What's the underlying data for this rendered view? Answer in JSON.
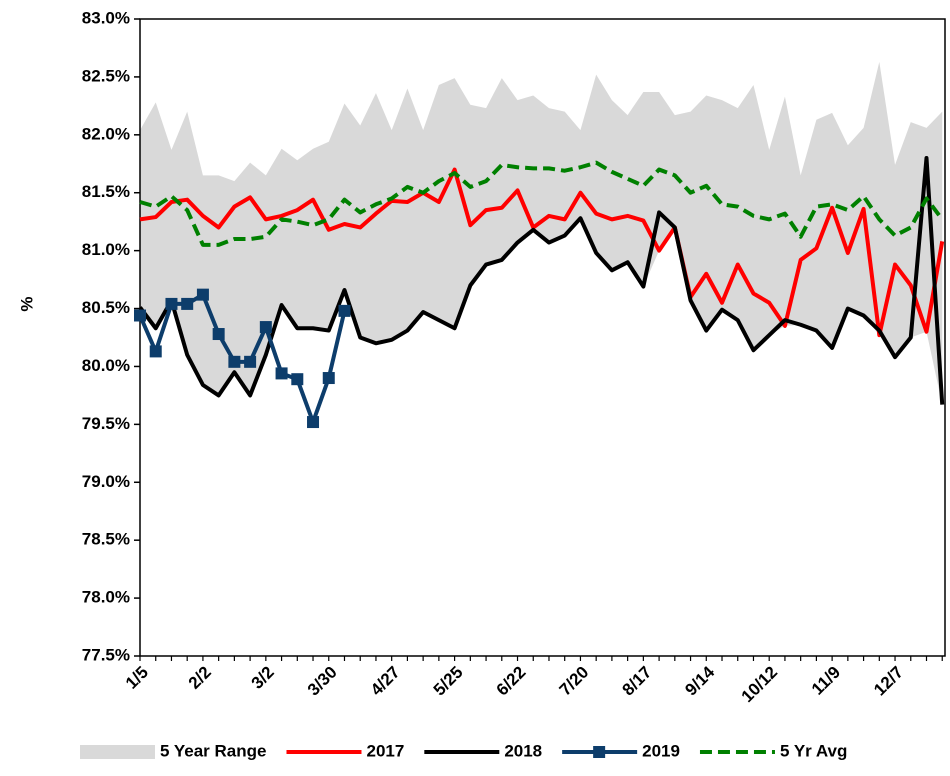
{
  "chart_data": {
    "type": "line",
    "ylabel": "%",
    "categories": [
      "1/5",
      null,
      null,
      null,
      "2/2",
      null,
      null,
      null,
      "3/2",
      null,
      null,
      null,
      "3/30",
      null,
      null,
      null,
      "4/27",
      null,
      null,
      null,
      "5/25",
      null,
      null,
      null,
      "6/22",
      null,
      null,
      null,
      "7/20",
      null,
      null,
      null,
      "8/17",
      null,
      null,
      null,
      "9/14",
      null,
      null,
      null,
      "10/12",
      null,
      null,
      null,
      "11/9",
      null,
      null,
      null,
      "12/7",
      null,
      null,
      null
    ],
    "ylim": [
      77.5,
      83.0
    ],
    "yticks": [
      {
        "value": 77.5,
        "label": "77.5%"
      },
      {
        "value": 78.0,
        "label": "78.0%"
      },
      {
        "value": 78.5,
        "label": "78.5%"
      },
      {
        "value": 79.0,
        "label": "79.0%"
      },
      {
        "value": 79.5,
        "label": "79.5%"
      },
      {
        "value": 80.0,
        "label": "80.0%"
      },
      {
        "value": 80.5,
        "label": "80.5%"
      },
      {
        "value": 81.0,
        "label": "81.0%"
      },
      {
        "value": 81.5,
        "label": "81.5%"
      },
      {
        "value": 82.0,
        "label": "82.0%"
      },
      {
        "value": 82.5,
        "label": "82.5%"
      },
      {
        "value": 83.0,
        "label": "83.0%"
      }
    ],
    "range": {
      "name": "5 Year Range",
      "color": "#d9d9d9",
      "high": [
        82.04,
        82.28,
        81.87,
        82.2,
        81.65,
        81.65,
        81.6,
        81.76,
        81.65,
        81.88,
        81.78,
        81.88,
        81.94,
        82.27,
        82.08,
        82.36,
        82.04,
        82.4,
        82.04,
        82.43,
        82.49,
        82.26,
        82.23,
        82.49,
        82.3,
        82.34,
        82.23,
        82.2,
        82.04,
        82.52,
        82.3,
        82.17,
        82.37,
        82.37,
        82.17,
        82.2,
        82.34,
        82.3,
        82.23,
        82.43,
        81.87,
        82.33,
        81.65,
        82.13,
        82.19,
        81.91,
        82.06,
        82.63,
        81.74,
        82.11,
        82.06,
        82.2
      ],
      "low": [
        80.51,
        80.33,
        80.57,
        80.1,
        79.84,
        79.75,
        79.95,
        79.75,
        80.1,
        80.53,
        80.33,
        80.33,
        80.31,
        80.66,
        80.25,
        80.2,
        80.23,
        80.31,
        80.47,
        80.4,
        80.33,
        80.7,
        80.88,
        80.92,
        81.07,
        81.18,
        81.07,
        81.13,
        81.28,
        80.98,
        80.83,
        80.9,
        80.69,
        81.0,
        81.2,
        80.57,
        80.31,
        80.49,
        80.4,
        80.14,
        80.27,
        80.35,
        80.36,
        80.31,
        80.16,
        80.5,
        80.44,
        80.27,
        80.08,
        80.25,
        80.3,
        79.67
      ]
    },
    "series": [
      {
        "name": "2017",
        "color": "#ff0000",
        "dash": false,
        "markers": false,
        "values": [
          81.27,
          81.29,
          81.42,
          81.44,
          81.3,
          81.2,
          81.38,
          81.46,
          81.27,
          81.3,
          81.35,
          81.44,
          81.18,
          81.23,
          81.2,
          81.32,
          81.43,
          81.42,
          81.5,
          81.42,
          81.7,
          81.22,
          81.35,
          81.37,
          81.52,
          81.2,
          81.3,
          81.27,
          81.5,
          81.32,
          81.27,
          81.3,
          81.26,
          81.0,
          81.2,
          80.6,
          80.8,
          80.55,
          80.88,
          80.63,
          80.55,
          80.35,
          80.92,
          81.02,
          81.37,
          80.98,
          81.36,
          80.27,
          80.88,
          80.7,
          80.3,
          81.08
        ]
      },
      {
        "name": "2018",
        "color": "#000000",
        "dash": false,
        "markers": false,
        "values": [
          80.51,
          80.33,
          80.57,
          80.1,
          79.84,
          79.75,
          79.95,
          79.75,
          80.1,
          80.53,
          80.33,
          80.33,
          80.31,
          80.66,
          80.25,
          80.2,
          80.23,
          80.31,
          80.47,
          80.4,
          80.33,
          80.7,
          80.88,
          80.92,
          81.07,
          81.18,
          81.07,
          81.13,
          81.28,
          80.98,
          80.83,
          80.9,
          80.69,
          81.33,
          81.2,
          80.57,
          80.31,
          80.49,
          80.4,
          80.14,
          80.27,
          80.4,
          80.36,
          80.31,
          80.16,
          80.5,
          80.44,
          80.31,
          80.08,
          80.25,
          81.8,
          79.67
        ]
      },
      {
        "name": "2019",
        "color": "#0d3d6b",
        "dash": false,
        "markers": true,
        "values": [
          80.44,
          80.13,
          80.54,
          80.54,
          80.62,
          80.28,
          80.04,
          80.04,
          80.34,
          79.94,
          79.89,
          79.52,
          79.9,
          80.48,
          null,
          null,
          null,
          null,
          null,
          null,
          null,
          null,
          null,
          null,
          null,
          null,
          null,
          null,
          null,
          null,
          null,
          null,
          null,
          null,
          null,
          null,
          null,
          null,
          null,
          null,
          null,
          null,
          null,
          null,
          null,
          null,
          null,
          null,
          null,
          null,
          null,
          null
        ]
      },
      {
        "name": "5 Yr Avg",
        "color": "#008000",
        "dash": true,
        "markers": false,
        "values": [
          81.42,
          81.38,
          81.47,
          81.35,
          81.05,
          81.05,
          81.1,
          81.1,
          81.12,
          81.27,
          81.25,
          81.22,
          81.27,
          81.44,
          81.33,
          81.4,
          81.45,
          81.55,
          81.5,
          81.6,
          81.67,
          81.55,
          81.6,
          81.74,
          81.72,
          81.71,
          81.71,
          81.69,
          81.72,
          81.76,
          81.68,
          81.62,
          81.56,
          81.7,
          81.65,
          81.5,
          81.56,
          81.4,
          81.38,
          81.3,
          81.27,
          81.32,
          81.12,
          81.38,
          81.4,
          81.35,
          81.47,
          81.27,
          81.13,
          81.2,
          81.45,
          81.27
        ]
      }
    ]
  }
}
